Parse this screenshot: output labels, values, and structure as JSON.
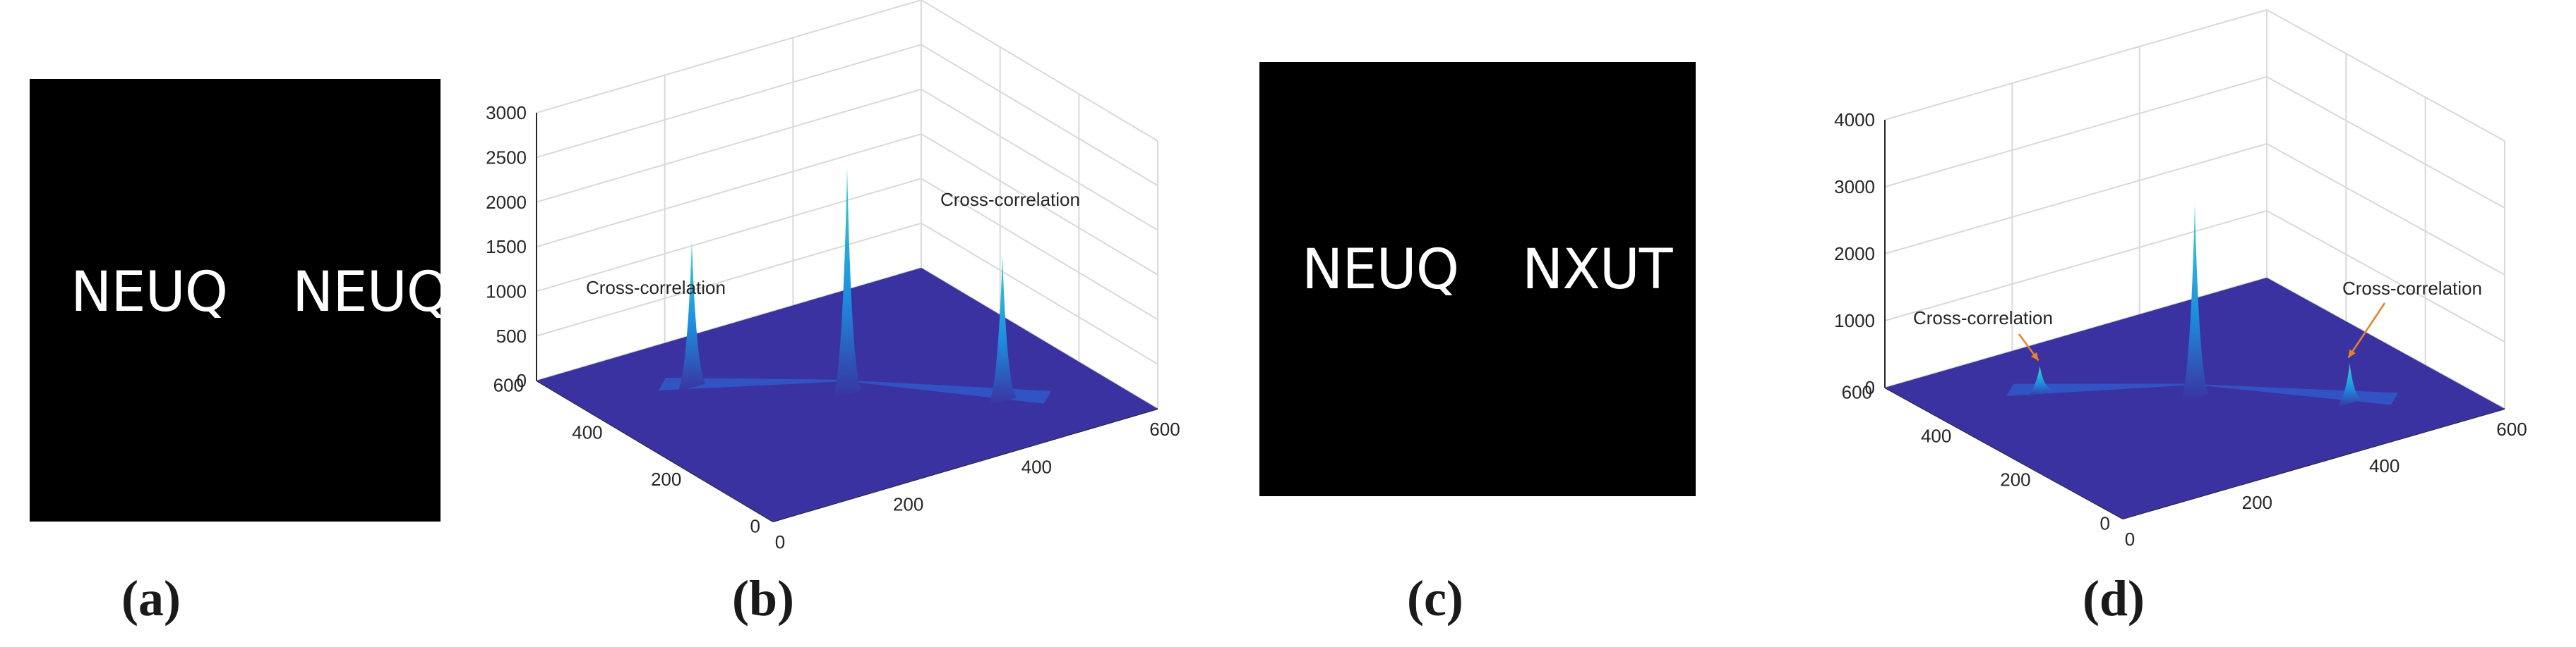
{
  "panels": {
    "a": {
      "caption": "(a)",
      "words": [
        "NEUQ",
        "NEUQ"
      ]
    },
    "b": {
      "caption": "(b)"
    },
    "c": {
      "caption": "(c)",
      "words": [
        "NEUQ",
        "NXUT"
      ]
    },
    "d": {
      "caption": "(d)"
    }
  },
  "colors": {
    "surface": "#3a32a0",
    "peak_mid": "#1d8fe0",
    "peak_top": "#3fd8c8",
    "arrow": "#e8822a",
    "axis": "#262626",
    "grid": "#d9d9d9"
  },
  "chart_data": [
    {
      "type": "surface",
      "panel": "b",
      "title": "",
      "xlabel": "",
      "ylabel": "",
      "zlabel": "",
      "xlim": [
        0,
        600
      ],
      "ylim": [
        0,
        600
      ],
      "zlim": [
        0,
        3000
      ],
      "x_ticks": [
        "0",
        "200",
        "400",
        "600"
      ],
      "y_ticks": [
        "0",
        "200",
        "400",
        "600"
      ],
      "z_ticks": [
        "0",
        "500",
        "1000",
        "1500",
        "2000",
        "2500",
        "3000"
      ],
      "grid": true,
      "peaks": [
        {
          "x": 150,
          "y": 450,
          "z": 1650
        },
        {
          "x": 300,
          "y": 300,
          "z": 2550
        },
        {
          "x": 450,
          "y": 150,
          "z": 1650
        }
      ],
      "annotations": [
        {
          "text": "Cross-correlation",
          "peak": 0
        },
        {
          "text": "Cross-correlation",
          "peak": 2
        }
      ]
    },
    {
      "type": "surface",
      "panel": "d",
      "title": "",
      "xlabel": "",
      "ylabel": "",
      "zlabel": "",
      "xlim": [
        0,
        600
      ],
      "ylim": [
        0,
        600
      ],
      "zlim": [
        0,
        4000
      ],
      "x_ticks": [
        "0",
        "200",
        "400",
        "600"
      ],
      "y_ticks": [
        "0",
        "200",
        "400",
        "600"
      ],
      "z_ticks": [
        "0",
        "1000",
        "2000",
        "3000",
        "4000"
      ],
      "grid": true,
      "peaks": [
        {
          "x": 150,
          "y": 450,
          "z": 400
        },
        {
          "x": 300,
          "y": 300,
          "z": 2900
        },
        {
          "x": 450,
          "y": 150,
          "z": 600
        }
      ],
      "annotations": [
        {
          "text": "Cross-correlation",
          "peak": 0,
          "arrow": true
        },
        {
          "text": "Cross-correlation",
          "peak": 2,
          "arrow": true
        }
      ]
    }
  ]
}
